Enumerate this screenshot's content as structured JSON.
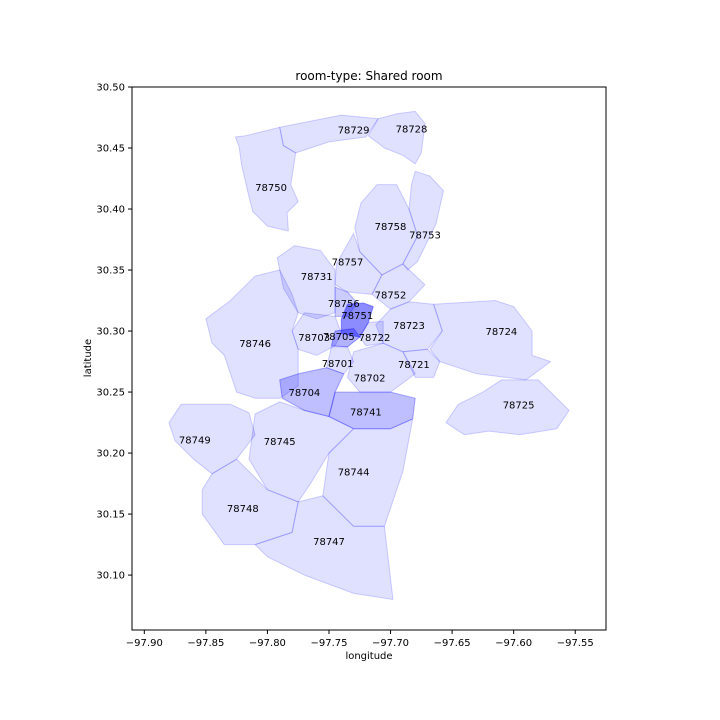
{
  "chart_data": {
    "type": "choropleth",
    "title": "room-type: Shared room",
    "xlabel": "longitude",
    "ylabel": "latitude",
    "xlim": [
      -97.91,
      -97.525
    ],
    "ylim": [
      30.055,
      30.5
    ],
    "x_ticks": [
      -97.9,
      -97.85,
      -97.8,
      -97.75,
      -97.7,
      -97.65,
      -97.6,
      -97.55
    ],
    "x_tick_labels": [
      "−97.90",
      "−97.85",
      "−97.80",
      "−97.75",
      "−97.70",
      "−97.65",
      "−97.60",
      "−97.55"
    ],
    "y_ticks": [
      30.1,
      30.15,
      30.2,
      30.25,
      30.3,
      30.35,
      30.4,
      30.45,
      30.5
    ],
    "y_tick_labels": [
      "30.10",
      "30.15",
      "30.20",
      "30.25",
      "30.30",
      "30.35",
      "30.40",
      "30.45",
      "30.50"
    ],
    "fill_color": "#0000ff",
    "regions": [
      {
        "zip": "78729",
        "lon": -97.73,
        "lat": 30.465,
        "intensity": 0.12,
        "outline": [
          [
            -97.79,
            30.467
          ],
          [
            -97.74,
            30.477
          ],
          [
            -97.71,
            30.474
          ],
          [
            -97.72,
            30.459
          ],
          [
            -97.75,
            30.455
          ],
          [
            -97.777,
            30.446
          ],
          [
            -97.787,
            30.452
          ]
        ]
      },
      {
        "zip": "78728",
        "lon": -97.683,
        "lat": 30.466,
        "intensity": 0.12,
        "outline": [
          [
            -97.71,
            30.474
          ],
          [
            -97.695,
            30.478
          ],
          [
            -97.68,
            30.48
          ],
          [
            -97.672,
            30.47
          ],
          [
            -97.675,
            30.446
          ],
          [
            -97.68,
            30.437
          ],
          [
            -97.69,
            30.444
          ],
          [
            -97.705,
            30.45
          ],
          [
            -97.718,
            30.46
          ]
        ]
      },
      {
        "zip": "78750",
        "lon": -97.797,
        "lat": 30.418,
        "intensity": 0.12,
        "outline": [
          [
            -97.818,
            30.46
          ],
          [
            -97.79,
            30.467
          ],
          [
            -97.787,
            30.452
          ],
          [
            -97.777,
            30.446
          ],
          [
            -97.781,
            30.42
          ],
          [
            -97.775,
            30.406
          ],
          [
            -97.784,
            30.397
          ],
          [
            -97.783,
            30.382
          ],
          [
            -97.8,
            30.386
          ],
          [
            -97.812,
            30.398
          ],
          [
            -97.815,
            30.41
          ],
          [
            -97.821,
            30.436
          ],
          [
            -97.823,
            30.451
          ],
          [
            -97.826,
            30.459
          ]
        ]
      },
      {
        "zip": "78758",
        "lon": -97.7,
        "lat": 30.386,
        "intensity": 0.12,
        "outline": [
          [
            -97.711,
            30.42
          ],
          [
            -97.695,
            30.42
          ],
          [
            -97.685,
            30.4
          ],
          [
            -97.678,
            30.378
          ],
          [
            -97.69,
            30.355
          ],
          [
            -97.707,
            30.346
          ],
          [
            -97.725,
            30.365
          ],
          [
            -97.729,
            30.385
          ],
          [
            -97.724,
            30.405
          ]
        ]
      },
      {
        "zip": "78753",
        "lon": -97.672,
        "lat": 30.379,
        "intensity": 0.12,
        "outline": [
          [
            -97.68,
            30.431
          ],
          [
            -97.668,
            30.427
          ],
          [
            -97.657,
            30.415
          ],
          [
            -97.663,
            30.388
          ],
          [
            -97.678,
            30.357
          ],
          [
            -97.686,
            30.35
          ],
          [
            -97.69,
            30.355
          ],
          [
            -97.678,
            30.378
          ],
          [
            -97.685,
            30.4
          ],
          [
            -97.683,
            30.42
          ]
        ]
      },
      {
        "zip": "78757",
        "lon": -97.735,
        "lat": 30.357,
        "intensity": 0.12,
        "outline": [
          [
            -97.73,
            30.38
          ],
          [
            -97.725,
            30.365
          ],
          [
            -97.707,
            30.346
          ],
          [
            -97.715,
            30.33
          ],
          [
            -97.735,
            30.332
          ],
          [
            -97.745,
            30.338
          ],
          [
            -97.744,
            30.355
          ]
        ]
      },
      {
        "zip": "78731",
        "lon": -97.76,
        "lat": 30.345,
        "intensity": 0.12,
        "outline": [
          [
            -97.778,
            30.37
          ],
          [
            -97.757,
            30.366
          ],
          [
            -97.745,
            30.35
          ],
          [
            -97.745,
            30.336
          ],
          [
            -97.745,
            30.315
          ],
          [
            -97.76,
            30.31
          ],
          [
            -97.775,
            30.315
          ],
          [
            -97.787,
            30.335
          ],
          [
            -97.792,
            30.36
          ]
        ]
      },
      {
        "zip": "78752",
        "lon": -97.7,
        "lat": 30.33,
        "intensity": 0.12,
        "outline": [
          [
            -97.707,
            30.346
          ],
          [
            -97.69,
            30.355
          ],
          [
            -97.672,
            30.338
          ],
          [
            -97.685,
            30.324
          ],
          [
            -97.7,
            30.318
          ],
          [
            -97.715,
            30.33
          ]
        ]
      },
      {
        "zip": "78756",
        "lon": -97.738,
        "lat": 30.323,
        "intensity": 0.2,
        "outline": [
          [
            -97.745,
            30.336
          ],
          [
            -97.735,
            30.332
          ],
          [
            -97.727,
            30.323
          ],
          [
            -97.735,
            30.312
          ],
          [
            -97.745,
            30.312
          ]
        ]
      },
      {
        "zip": "78751",
        "lon": -97.727,
        "lat": 30.313,
        "intensity": 0.45,
        "outline": [
          [
            -97.735,
            30.322
          ],
          [
            -97.722,
            30.323
          ],
          [
            -97.714,
            30.32
          ],
          [
            -97.718,
            30.307
          ],
          [
            -97.725,
            30.295
          ],
          [
            -97.74,
            30.298
          ],
          [
            -97.74,
            30.31
          ]
        ]
      },
      {
        "zip": "78723",
        "lon": -97.685,
        "lat": 30.305,
        "intensity": 0.12,
        "outline": [
          [
            -97.7,
            30.318
          ],
          [
            -97.685,
            30.324
          ],
          [
            -97.665,
            30.322
          ],
          [
            -97.658,
            30.3
          ],
          [
            -97.67,
            30.285
          ],
          [
            -97.69,
            30.283
          ],
          [
            -97.706,
            30.29
          ],
          [
            -97.712,
            30.305
          ]
        ]
      },
      {
        "zip": "78724",
        "lon": -97.61,
        "lat": 30.3,
        "intensity": 0.12,
        "outline": [
          [
            -97.665,
            30.322
          ],
          [
            -97.615,
            30.325
          ],
          [
            -97.6,
            30.32
          ],
          [
            -97.585,
            30.3
          ],
          [
            -97.585,
            30.28
          ],
          [
            -97.57,
            30.275
          ],
          [
            -97.59,
            30.26
          ],
          [
            -97.63,
            30.265
          ],
          [
            -97.66,
            30.275
          ],
          [
            -97.668,
            30.285
          ],
          [
            -97.658,
            30.3
          ]
        ]
      },
      {
        "zip": "78703",
        "lon": -97.762,
        "lat": 30.295,
        "intensity": 0.12,
        "outline": [
          [
            -97.77,
            30.315
          ],
          [
            -97.745,
            30.312
          ],
          [
            -97.74,
            30.298
          ],
          [
            -97.745,
            30.288
          ],
          [
            -97.76,
            30.28
          ],
          [
            -97.775,
            30.285
          ],
          [
            -97.78,
            30.3
          ]
        ]
      },
      {
        "zip": "78705",
        "lon": -97.742,
        "lat": 30.296,
        "intensity": 0.3,
        "outline": [
          [
            -97.745,
            30.3
          ],
          [
            -97.73,
            30.302
          ],
          [
            -97.725,
            30.295
          ],
          [
            -97.735,
            30.287
          ],
          [
            -97.748,
            30.288
          ]
        ]
      },
      {
        "zip": "78722",
        "lon": -97.713,
        "lat": 30.295,
        "intensity": 0.12,
        "outline": [
          [
            -97.718,
            30.307
          ],
          [
            -97.706,
            30.308
          ],
          [
            -97.706,
            30.29
          ],
          [
            -97.72,
            30.288
          ],
          [
            -97.725,
            30.295
          ]
        ]
      },
      {
        "zip": "78746",
        "lon": -97.81,
        "lat": 30.29,
        "intensity": 0.12,
        "outline": [
          [
            -97.81,
            30.345
          ],
          [
            -97.79,
            30.35
          ],
          [
            -97.78,
            30.33
          ],
          [
            -97.775,
            30.315
          ],
          [
            -97.78,
            30.3
          ],
          [
            -97.775,
            30.285
          ],
          [
            -97.775,
            30.255
          ],
          [
            -97.79,
            30.245
          ],
          [
            -97.81,
            30.245
          ],
          [
            -97.825,
            30.25
          ],
          [
            -97.835,
            30.28
          ],
          [
            -97.845,
            30.29
          ],
          [
            -97.85,
            30.31
          ],
          [
            -97.83,
            30.325
          ]
        ]
      },
      {
        "zip": "78701",
        "lon": -97.743,
        "lat": 30.274,
        "intensity": 0.12,
        "outline": [
          [
            -97.748,
            30.287
          ],
          [
            -97.735,
            30.287
          ],
          [
            -97.73,
            30.275
          ],
          [
            -97.738,
            30.265
          ],
          [
            -97.752,
            30.27
          ]
        ]
      },
      {
        "zip": "78702",
        "lon": -97.717,
        "lat": 30.262,
        "intensity": 0.12,
        "outline": [
          [
            -97.73,
            30.283
          ],
          [
            -97.706,
            30.29
          ],
          [
            -97.69,
            30.283
          ],
          [
            -97.68,
            30.265
          ],
          [
            -97.7,
            30.25
          ],
          [
            -97.725,
            30.25
          ],
          [
            -97.735,
            30.262
          ]
        ]
      },
      {
        "zip": "78721",
        "lon": -97.681,
        "lat": 30.273,
        "intensity": 0.12,
        "outline": [
          [
            -97.69,
            30.283
          ],
          [
            -97.67,
            30.285
          ],
          [
            -97.66,
            30.275
          ],
          [
            -97.665,
            30.262
          ],
          [
            -97.68,
            30.262
          ]
        ]
      },
      {
        "zip": "78704",
        "lon": -97.77,
        "lat": 30.25,
        "intensity": 0.25,
        "outline": [
          [
            -97.79,
            30.26
          ],
          [
            -97.775,
            30.265
          ],
          [
            -97.752,
            30.27
          ],
          [
            -97.738,
            30.265
          ],
          [
            -97.745,
            30.25
          ],
          [
            -97.75,
            30.23
          ],
          [
            -97.77,
            30.235
          ],
          [
            -97.788,
            30.245
          ]
        ]
      },
      {
        "zip": "78741",
        "lon": -97.72,
        "lat": 30.234,
        "intensity": 0.25,
        "outline": [
          [
            -97.745,
            30.25
          ],
          [
            -97.725,
            30.25
          ],
          [
            -97.7,
            30.25
          ],
          [
            -97.68,
            30.245
          ],
          [
            -97.682,
            30.228
          ],
          [
            -97.7,
            30.22
          ],
          [
            -97.73,
            30.22
          ],
          [
            -97.75,
            30.23
          ]
        ]
      },
      {
        "zip": "78725",
        "lon": -97.596,
        "lat": 30.24,
        "intensity": 0.12,
        "outline": [
          [
            -97.61,
            30.26
          ],
          [
            -97.58,
            30.26
          ],
          [
            -97.57,
            30.25
          ],
          [
            -97.555,
            30.235
          ],
          [
            -97.565,
            30.22
          ],
          [
            -97.595,
            30.215
          ],
          [
            -97.62,
            30.218
          ],
          [
            -97.64,
            30.215
          ],
          [
            -97.655,
            30.225
          ],
          [
            -97.645,
            30.24
          ],
          [
            -97.625,
            30.25
          ]
        ]
      },
      {
        "zip": "78749",
        "lon": -97.859,
        "lat": 30.211,
        "intensity": 0.12,
        "outline": [
          [
            -97.87,
            30.24
          ],
          [
            -97.83,
            30.24
          ],
          [
            -97.815,
            30.233
          ],
          [
            -97.81,
            30.215
          ],
          [
            -97.825,
            30.195
          ],
          [
            -97.845,
            30.183
          ],
          [
            -97.86,
            30.195
          ],
          [
            -97.875,
            30.21
          ],
          [
            -97.88,
            30.225
          ]
        ]
      },
      {
        "zip": "78745",
        "lon": -97.79,
        "lat": 30.21,
        "intensity": 0.12,
        "outline": [
          [
            -97.81,
            30.232
          ],
          [
            -97.79,
            30.242
          ],
          [
            -97.77,
            30.235
          ],
          [
            -97.75,
            30.23
          ],
          [
            -97.73,
            30.22
          ],
          [
            -97.75,
            30.2
          ],
          [
            -97.765,
            30.175
          ],
          [
            -97.775,
            30.16
          ],
          [
            -97.8,
            30.17
          ],
          [
            -97.815,
            30.195
          ]
        ]
      },
      {
        "zip": "78744",
        "lon": -97.73,
        "lat": 30.185,
        "intensity": 0.12,
        "outline": [
          [
            -97.73,
            30.22
          ],
          [
            -97.7,
            30.22
          ],
          [
            -97.682,
            30.228
          ],
          [
            -97.69,
            30.185
          ],
          [
            -97.705,
            30.14
          ],
          [
            -97.73,
            30.14
          ],
          [
            -97.755,
            30.165
          ],
          [
            -97.75,
            30.2
          ]
        ]
      },
      {
        "zip": "78748",
        "lon": -97.82,
        "lat": 30.155,
        "intensity": 0.12,
        "outline": [
          [
            -97.845,
            30.183
          ],
          [
            -97.825,
            30.195
          ],
          [
            -97.8,
            30.17
          ],
          [
            -97.775,
            30.16
          ],
          [
            -97.78,
            30.135
          ],
          [
            -97.81,
            30.125
          ],
          [
            -97.835,
            30.125
          ],
          [
            -97.853,
            30.15
          ],
          [
            -97.853,
            30.17
          ]
        ]
      },
      {
        "zip": "78747",
        "lon": -97.75,
        "lat": 30.128,
        "intensity": 0.12,
        "outline": [
          [
            -97.775,
            30.16
          ],
          [
            -97.755,
            30.165
          ],
          [
            -97.73,
            30.14
          ],
          [
            -97.705,
            30.14
          ],
          [
            -97.698,
            30.08
          ],
          [
            -97.73,
            30.085
          ],
          [
            -97.77,
            30.1
          ],
          [
            -97.8,
            30.115
          ],
          [
            -97.81,
            30.125
          ],
          [
            -97.78,
            30.135
          ]
        ]
      }
    ]
  }
}
